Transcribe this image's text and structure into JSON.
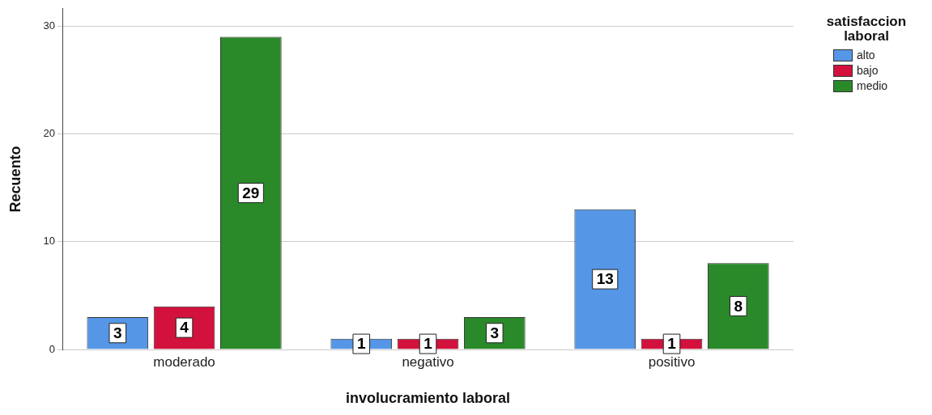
{
  "chart_data": {
    "type": "bar",
    "xlabel": "involucramiento laboral",
    "ylabel": "Recuento",
    "legend_title": "satisfaccion laboral",
    "categories": [
      "moderado",
      "negativo",
      "positivo"
    ],
    "series": [
      {
        "name": "alto",
        "color": "#5596e6",
        "values": [
          3,
          1,
          13
        ]
      },
      {
        "name": "bajo",
        "color": "#d2123c",
        "values": [
          4,
          1,
          1
        ]
      },
      {
        "name": "medio",
        "color": "#2a8a2a",
        "values": [
          29,
          3,
          8
        ]
      }
    ],
    "ylim": [
      0,
      31.6
    ],
    "yticks": [
      0,
      10,
      20,
      30
    ],
    "grid": "y",
    "legend": "top right",
    "data_labels": true
  }
}
